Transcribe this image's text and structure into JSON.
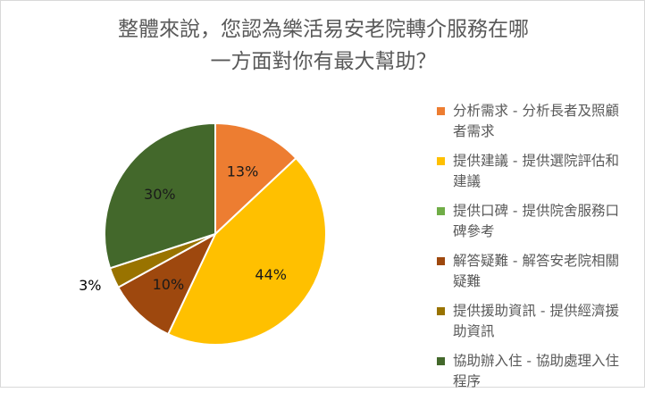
{
  "chart_data": {
    "type": "pie",
    "title_lines": [
      "整體來說，您認為樂活易安老院轉介服務在哪",
      "一方面對你有最大幫助？"
    ],
    "categories": [
      "分析需求 - 分析長者及照顧者需求",
      "提供建議 - 提供選院評估和建議",
      "提供口碑 - 提供院舍服務口碑參考",
      "解答疑難 - 解答安老院相關疑難",
      "提供援助資訊 - 提供經濟援助資訊",
      "協助辦入住 - 協助處理入住程序"
    ],
    "values": [
      13,
      44,
      0,
      10,
      3,
      30
    ],
    "data_labels": [
      "13%",
      "44%",
      "",
      "10%",
      "3%",
      "30%"
    ],
    "colors": [
      "#ED7D31",
      "#FFC000",
      "#70AD47",
      "#9E480E",
      "#997300",
      "#43682B"
    ],
    "legend_position": "right"
  }
}
